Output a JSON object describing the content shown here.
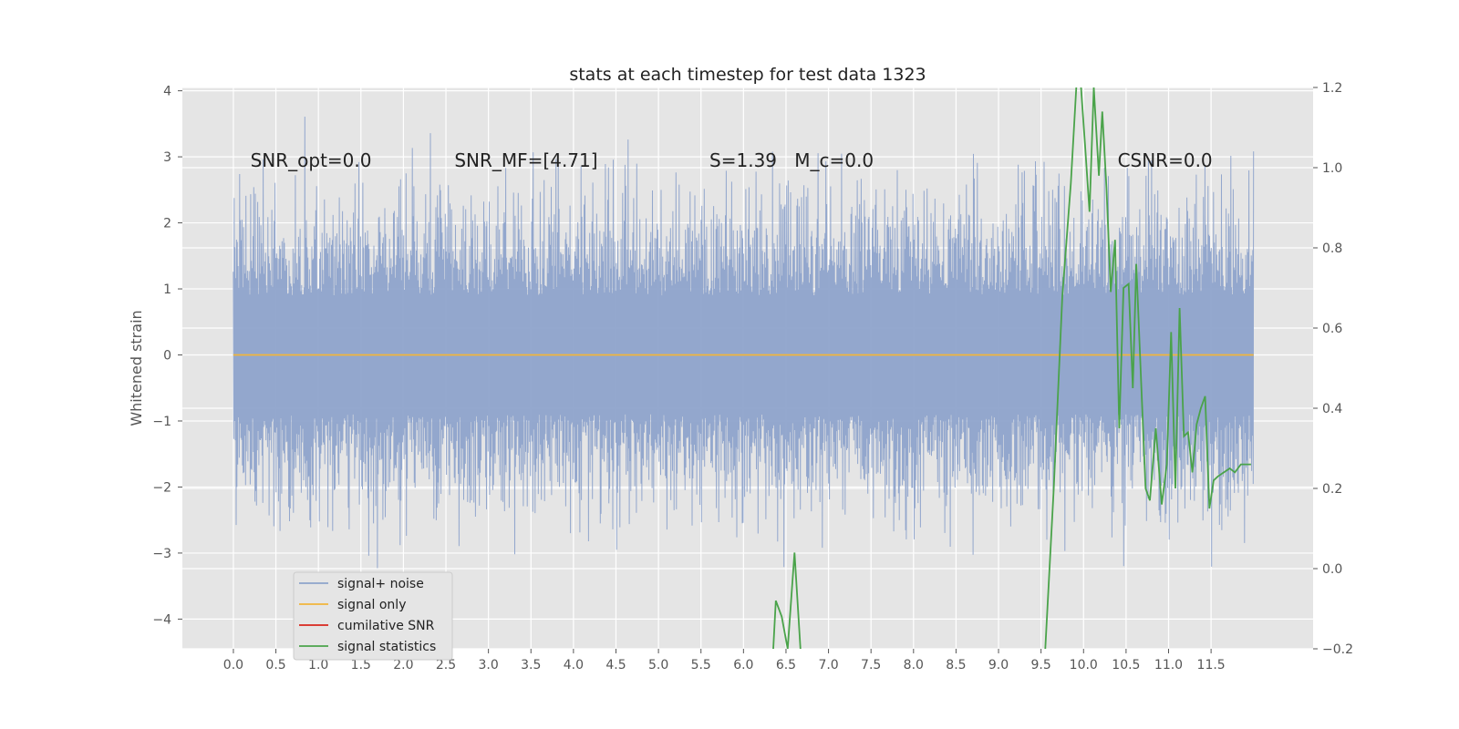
{
  "chart_data": {
    "type": "line",
    "title": "stats at each timestep for test data 1323",
    "ylabel": "Whitened strain",
    "xlim": [
      -0.6,
      12.7
    ],
    "ylim_left": [
      -4.45,
      4.05
    ],
    "ylim_right": [
      -0.2,
      1.2
    ],
    "x_ticks": [
      0.0,
      0.5,
      1.0,
      1.5,
      2.0,
      2.5,
      3.0,
      3.5,
      4.0,
      4.5,
      5.0,
      5.5,
      6.0,
      6.5,
      7.0,
      7.5,
      8.0,
      8.5,
      9.0,
      9.5,
      10.0,
      10.5,
      11.0,
      11.5
    ],
    "x_tick_labels": [
      "0.0",
      "0.5",
      "1.0",
      "1.5",
      "2.0",
      "2.5",
      "3.0",
      "3.5",
      "4.0",
      "4.5",
      "5.0",
      "5.5",
      "6.0",
      "6.5",
      "7.0",
      "7.5",
      "8.0",
      "8.5",
      "9.0",
      "9.5",
      "10.0",
      "10.5",
      "11.0",
      "11.5"
    ],
    "y_left_ticks": [
      4,
      3,
      2,
      1,
      0,
      -1,
      -2,
      -3,
      -4
    ],
    "y_left_tick_labels": [
      "4",
      "3",
      "2",
      "1",
      "0",
      "−1",
      "−2",
      "−3",
      "−4"
    ],
    "y_right_ticks": [
      1.2,
      1.0,
      0.8,
      0.6,
      0.4,
      0.2,
      0.0,
      -0.2
    ],
    "y_right_tick_labels": [
      "1.2",
      "1.0",
      "0.8",
      "0.6",
      "0.4",
      "0.2",
      "0.0",
      "−0.2"
    ],
    "grid": true,
    "legend_placement": "lower-left",
    "noise": {
      "x_start": 0.0,
      "x_end": 12.0,
      "typical_amplitude": 1.6,
      "max": 3.7,
      "min": -4.1
    },
    "series": [
      {
        "name": "signal+ noise",
        "color": "#8ea3cb",
        "axis": "left"
      },
      {
        "name": "signal only",
        "color": "#f2b53a",
        "axis": "left",
        "x": [
          0.0,
          12.0
        ],
        "y": [
          0.0,
          0.0
        ]
      },
      {
        "name": "cumilative SNR",
        "color": "#d9261c",
        "axis": "right",
        "x": [],
        "y": []
      },
      {
        "name": "signal statistics",
        "color": "#4aa34a",
        "axis": "right",
        "x": [
          6.35,
          6.38,
          6.45,
          6.52,
          6.6,
          6.67,
          9.55,
          9.65,
          9.75,
          9.85,
          9.92,
          9.97,
          10.02,
          10.07,
          10.12,
          10.18,
          10.22,
          10.27,
          10.32,
          10.37,
          10.42,
          10.47,
          10.53,
          10.58,
          10.62,
          10.68,
          10.73,
          10.78,
          10.85,
          10.92,
          10.98,
          11.03,
          11.08,
          11.13,
          11.18,
          11.23,
          11.28,
          11.33,
          11.38,
          11.43,
          11.48,
          11.53,
          11.58,
          11.65,
          11.72,
          11.78,
          11.85,
          11.92,
          11.97
        ],
        "y": [
          -0.2,
          -0.08,
          -0.12,
          -0.2,
          0.04,
          -0.2,
          -0.2,
          0.2,
          0.68,
          0.96,
          1.22,
          1.2,
          1.05,
          0.89,
          1.2,
          0.98,
          1.14,
          0.95,
          0.69,
          0.82,
          0.35,
          0.7,
          0.71,
          0.45,
          0.76,
          0.45,
          0.2,
          0.17,
          0.35,
          0.16,
          0.26,
          0.59,
          0.2,
          0.65,
          0.33,
          0.34,
          0.24,
          0.36,
          0.4,
          0.43,
          0.15,
          0.22,
          0.23,
          0.24,
          0.25,
          0.24,
          0.26,
          0.26,
          0.26
        ]
      }
    ],
    "annotations": [
      {
        "text": "SNR_opt=0.0",
        "x": 0.2,
        "y": 2.85
      },
      {
        "text": "SNR_MF=[4.71]",
        "x": 2.6,
        "y": 2.85
      },
      {
        "text": "S=1.39",
        "x": 5.6,
        "y": 2.85
      },
      {
        "text": "M_c=0.0",
        "x": 6.6,
        "y": 2.85
      },
      {
        "text": "CSNR=0.0",
        "x": 10.4,
        "y": 2.85
      }
    ]
  }
}
